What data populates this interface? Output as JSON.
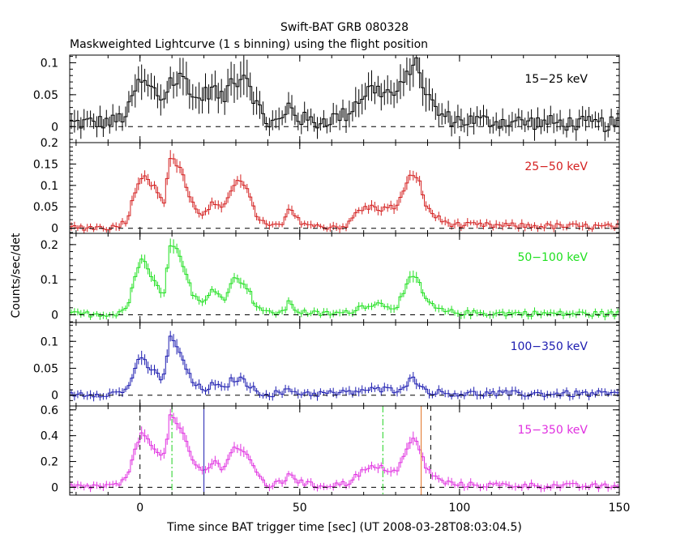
{
  "title": "Swift-BAT GRB 080328",
  "subtitle": "Maskweighted Lightcurve (1 s binning) using the flight position",
  "chart_data": {
    "type": "line",
    "xlabel": "Time since BAT trigger time [sec] (UT 2008-03-28T08:03:04.5)",
    "ylabel": "Counts/sec/det",
    "xlim": [
      -22,
      150
    ],
    "x_ticks": [
      0,
      50,
      100,
      150
    ],
    "x_tick_labels": [
      "0",
      "50",
      "100",
      "150"
    ],
    "shape_knots_x": [
      -22,
      -8,
      -4,
      -1,
      1,
      3,
      5,
      7,
      8,
      9,
      10,
      11,
      13,
      15,
      17,
      20,
      23,
      26,
      29,
      31,
      33,
      36,
      40,
      45,
      47,
      49,
      55,
      65,
      68,
      72,
      76,
      80,
      83,
      85,
      87,
      89,
      92,
      95,
      100,
      150
    ],
    "panels": [
      {
        "name": "15-25 keV",
        "label": "15−25 keV",
        "color": "#000000",
        "ylim": [
          -0.025,
          0.112
        ],
        "y_ticks": [
          0,
          0.05,
          0.1
        ],
        "y_tick_labels": [
          "0",
          "0.05",
          "0.1"
        ],
        "knots_y": [
          0.005,
          0.008,
          0.02,
          0.065,
          0.07,
          0.06,
          0.055,
          0.04,
          0.05,
          0.07,
          0.075,
          0.065,
          0.08,
          0.07,
          0.04,
          0.05,
          0.06,
          0.04,
          0.08,
          0.07,
          0.09,
          0.04,
          0.005,
          0.01,
          0.04,
          0.015,
          0.006,
          0.02,
          0.04,
          0.06,
          0.055,
          0.05,
          0.07,
          0.1,
          0.095,
          0.06,
          0.03,
          0.015,
          0.01,
          0.003
        ],
        "noise": 0.012
      },
      {
        "name": "25-50 keV",
        "label": "25−50 keV",
        "color": "#d42020",
        "ylim": [
          -0.012,
          0.2
        ],
        "y_ticks": [
          0,
          0.05,
          0.1,
          0.15,
          0.2
        ],
        "y_tick_labels": [
          "0",
          "0.05",
          "0.1",
          "0.15",
          "0.2"
        ],
        "knots_y": [
          0.002,
          0.002,
          0.02,
          0.1,
          0.13,
          0.11,
          0.09,
          0.06,
          0.07,
          0.15,
          0.18,
          0.15,
          0.14,
          0.08,
          0.05,
          0.03,
          0.06,
          0.04,
          0.1,
          0.12,
          0.1,
          0.035,
          0.003,
          0.01,
          0.05,
          0.02,
          0.003,
          0.005,
          0.04,
          0.05,
          0.045,
          0.05,
          0.09,
          0.13,
          0.12,
          0.06,
          0.03,
          0.015,
          0.007,
          0.003
        ],
        "noise": 0.007
      },
      {
        "name": "50-100 keV",
        "label": "50−100 keV",
        "color": "#20e020",
        "ylim": [
          -0.022,
          0.232
        ],
        "y_ticks": [
          0,
          0.1,
          0.2
        ],
        "y_tick_labels": [
          "0",
          "0.1",
          "0.2"
        ],
        "knots_y": [
          0.002,
          0.002,
          0.02,
          0.13,
          0.16,
          0.12,
          0.1,
          0.06,
          0.08,
          0.18,
          0.21,
          0.19,
          0.16,
          0.1,
          0.05,
          0.03,
          0.08,
          0.04,
          0.1,
          0.1,
          0.09,
          0.03,
          0.003,
          0.01,
          0.04,
          0.01,
          0.003,
          0.005,
          0.02,
          0.03,
          0.03,
          0.02,
          0.07,
          0.11,
          0.1,
          0.05,
          0.02,
          0.01,
          0.005,
          0.002
        ],
        "noise": 0.008
      },
      {
        "name": "100-350 keV",
        "label": "100−350 keV",
        "color": "#1c1cb0",
        "ylim": [
          -0.02,
          0.135
        ],
        "y_ticks": [
          0,
          0.05,
          0.1
        ],
        "y_tick_labels": [
          "0",
          "0.05",
          "0.1"
        ],
        "knots_y": [
          0.002,
          0.003,
          0.01,
          0.06,
          0.065,
          0.05,
          0.04,
          0.03,
          0.05,
          0.1,
          0.11,
          0.09,
          0.075,
          0.04,
          0.02,
          0.01,
          0.02,
          0.01,
          0.03,
          0.03,
          0.025,
          0.008,
          0.002,
          0.005,
          0.01,
          0.005,
          0.003,
          0.004,
          0.008,
          0.01,
          0.01,
          0.01,
          0.02,
          0.03,
          0.025,
          0.01,
          0.006,
          0.004,
          0.003,
          0.002
        ],
        "noise": 0.006
      },
      {
        "name": "15-350 keV",
        "label": "15−350 keV",
        "color": "#e030e0",
        "ylim": [
          -0.06,
          0.63
        ],
        "y_ticks": [
          0,
          0.2,
          0.4,
          0.6
        ],
        "y_tick_labels": [
          "0",
          "0.2",
          "0.4",
          "0.6"
        ],
        "knots_y": [
          0.005,
          0.01,
          0.06,
          0.35,
          0.42,
          0.36,
          0.3,
          0.22,
          0.28,
          0.5,
          0.58,
          0.5,
          0.44,
          0.3,
          0.18,
          0.12,
          0.2,
          0.15,
          0.3,
          0.3,
          0.28,
          0.12,
          0.01,
          0.04,
          0.13,
          0.05,
          0.01,
          0.03,
          0.1,
          0.15,
          0.15,
          0.12,
          0.25,
          0.38,
          0.34,
          0.18,
          0.08,
          0.04,
          0.02,
          0.005
        ],
        "noise": 0.022
      }
    ],
    "markers": [
      {
        "x": 0,
        "color": "#000000",
        "style": "dashed"
      },
      {
        "x": 10,
        "color": "#20d020",
        "style": "dashdot"
      },
      {
        "x": 20,
        "color": "#1c1cb0",
        "style": "solid"
      },
      {
        "x": 76,
        "color": "#20d020",
        "style": "dashdot"
      },
      {
        "x": 88,
        "color": "#e07020",
        "style": "solid"
      },
      {
        "x": 91,
        "color": "#000000",
        "style": "dashed"
      }
    ],
    "grid": false,
    "zero_line": "dashed"
  }
}
